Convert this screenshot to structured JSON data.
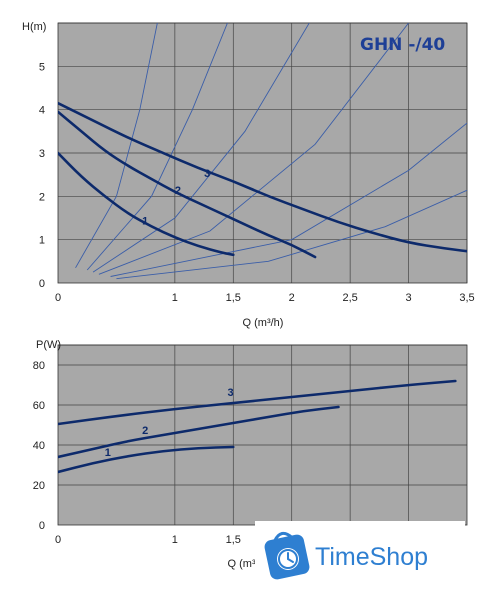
{
  "model_label": "GHN -/40",
  "watermark": {
    "text": "TimeShop",
    "icon": "clock-bag-icon",
    "color": "#2e7fd1"
  },
  "colors": {
    "plot_bg": "#a8a8a8",
    "grid": "#444444",
    "curve": "#0d2a6b",
    "system_curve": "#3b5ea8"
  },
  "chart_data": [
    {
      "type": "line",
      "ylabel": "H(m)",
      "xlabel": "Q (m³/h)",
      "xlim": [
        0,
        3.5
      ],
      "ylim": [
        0,
        6
      ],
      "xticks": [
        "0",
        "1",
        "1,5",
        "2",
        "2,5",
        "3",
        "3,5"
      ],
      "xtick_values": [
        0,
        1,
        1.5,
        2,
        2.5,
        3,
        3.5
      ],
      "yticks": [
        "0",
        "1",
        "2",
        "3",
        "4",
        "5"
      ],
      "ytick_values": [
        0,
        1,
        2,
        3,
        4,
        5
      ],
      "grid": true,
      "series": [
        {
          "name": "1",
          "points": [
            [
              0,
              3.0
            ],
            [
              0.2,
              2.45
            ],
            [
              0.4,
              2.0
            ],
            [
              0.6,
              1.6
            ],
            [
              0.8,
              1.3
            ],
            [
              1.0,
              1.05
            ],
            [
              1.2,
              0.85
            ],
            [
              1.4,
              0.7
            ],
            [
              1.5,
              0.65
            ]
          ],
          "label_at": [
            0.72,
            1.35
          ]
        },
        {
          "name": "2",
          "points": [
            [
              0,
              3.95
            ],
            [
              0.2,
              3.5
            ],
            [
              0.4,
              3.05
            ],
            [
              0.6,
              2.7
            ],
            [
              0.8,
              2.4
            ],
            [
              1.0,
              2.1
            ],
            [
              1.2,
              1.85
            ],
            [
              1.4,
              1.6
            ],
            [
              1.6,
              1.35
            ],
            [
              1.8,
              1.1
            ],
            [
              2.0,
              0.88
            ],
            [
              2.2,
              0.6
            ]
          ],
          "label_at": [
            1.0,
            2.05
          ]
        },
        {
          "name": "3",
          "points": [
            [
              0,
              4.15
            ],
            [
              0.3,
              3.75
            ],
            [
              0.6,
              3.35
            ],
            [
              0.9,
              3.0
            ],
            [
              1.2,
              2.65
            ],
            [
              1.5,
              2.35
            ],
            [
              1.8,
              2.0
            ],
            [
              2.1,
              1.7
            ],
            [
              2.4,
              1.4
            ],
            [
              2.7,
              1.15
            ],
            [
              3.0,
              0.93
            ],
            [
              3.3,
              0.8
            ],
            [
              3.6,
              0.7
            ]
          ],
          "label_at": [
            1.25,
            2.45
          ]
        }
      ],
      "system_curves": [
        {
          "name": "",
          "points": [
            [
              0.15,
              0.35
            ],
            [
              0.5,
              2.0
            ],
            [
              0.7,
              4.0
            ],
            [
              0.85,
              6.0
            ]
          ]
        },
        {
          "name": "",
          "points": [
            [
              0.25,
              0.3
            ],
            [
              0.8,
              2.0
            ],
            [
              1.15,
              4.0
            ],
            [
              1.45,
              6.0
            ]
          ]
        },
        {
          "name": "",
          "points": [
            [
              0.3,
              0.25
            ],
            [
              1.0,
              1.5
            ],
            [
              1.6,
              3.5
            ],
            [
              2.15,
              6.0
            ]
          ]
        },
        {
          "name": "",
          "points": [
            [
              0.35,
              0.2
            ],
            [
              1.3,
              1.2
            ],
            [
              2.2,
              3.2
            ],
            [
              3.0,
              6.0
            ]
          ]
        },
        {
          "name": "",
          "points": [
            [
              0.45,
              0.15
            ],
            [
              2.0,
              1.0
            ],
            [
              3.0,
              2.6
            ],
            [
              3.55,
              3.8
            ]
          ]
        },
        {
          "name": "",
          "points": [
            [
              0.5,
              0.1
            ],
            [
              1.8,
              0.5
            ],
            [
              2.8,
              1.3
            ],
            [
              3.55,
              2.2
            ]
          ]
        }
      ]
    },
    {
      "type": "line",
      "ylabel": "P(W)",
      "xlabel": "Q (m³/h)",
      "xlim": [
        0,
        3.5
      ],
      "ylim": [
        0,
        90
      ],
      "xticks": [
        "0",
        "1",
        "1,5"
      ],
      "xtick_values": [
        0,
        1,
        1.5
      ],
      "yticks": [
        "0",
        "20",
        "40",
        "60",
        "80"
      ],
      "ytick_values": [
        0,
        20,
        40,
        60,
        80
      ],
      "grid": true,
      "series": [
        {
          "name": "1",
          "points": [
            [
              0,
              26.5
            ],
            [
              0.3,
              31
            ],
            [
              0.6,
              34.5
            ],
            [
              0.9,
              37
            ],
            [
              1.2,
              38.5
            ],
            [
              1.5,
              39
            ]
          ],
          "label_at": [
            0.4,
            34.5
          ]
        },
        {
          "name": "2",
          "points": [
            [
              0,
              34
            ],
            [
              0.3,
              38
            ],
            [
              0.6,
              42
            ],
            [
              0.9,
              45
            ],
            [
              1.2,
              48
            ],
            [
              1.5,
              51
            ],
            [
              1.8,
              54
            ],
            [
              2.1,
              57
            ],
            [
              2.4,
              59
            ]
          ],
          "label_at": [
            0.72,
            45.5
          ]
        },
        {
          "name": "3",
          "points": [
            [
              0,
              50.5
            ],
            [
              0.5,
              54.5
            ],
            [
              1.0,
              58
            ],
            [
              1.5,
              61
            ],
            [
              2.0,
              64
            ],
            [
              2.5,
              67
            ],
            [
              3.0,
              70
            ],
            [
              3.4,
              72
            ]
          ],
          "label_at": [
            1.45,
            64.5
          ]
        }
      ]
    }
  ]
}
